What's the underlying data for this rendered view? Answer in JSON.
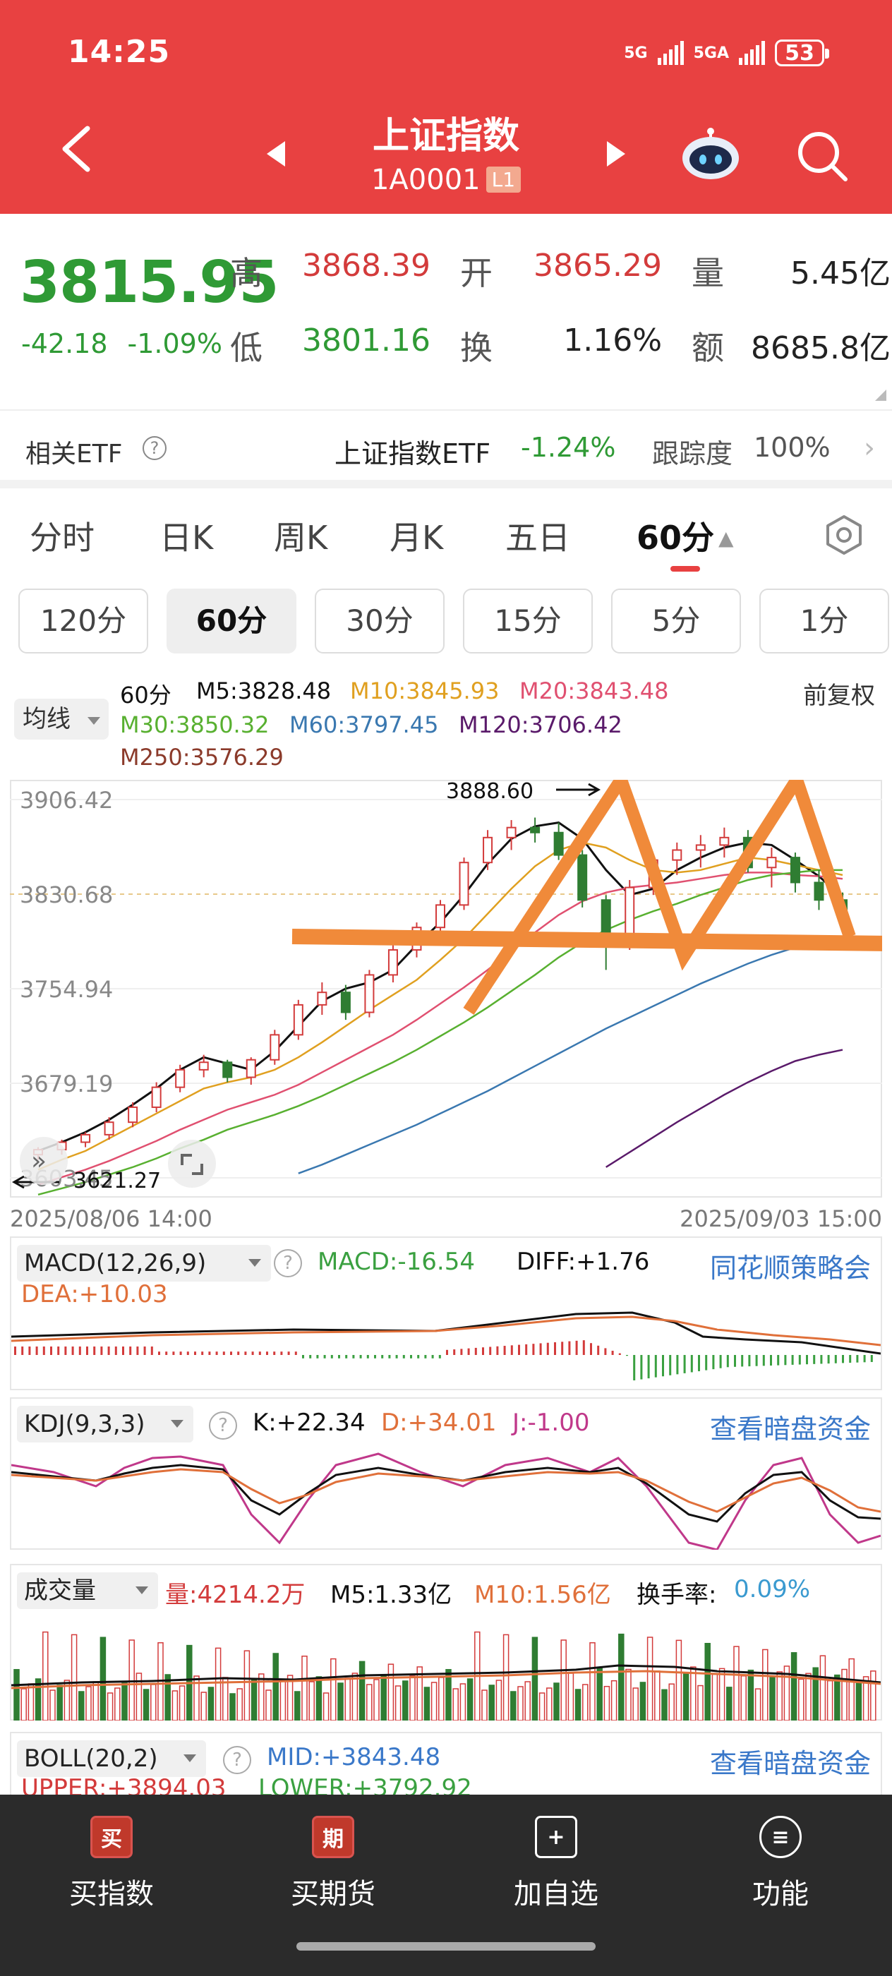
{
  "status_bar": {
    "time": "14:25",
    "signal1": "5G",
    "signal2": "5GA",
    "battery": "53"
  },
  "header": {
    "title": "上证指数",
    "code": "1A0001",
    "badge": "L1"
  },
  "quote": {
    "last": "3815.95",
    "change": "-42.18",
    "change_pct": "-1.09%",
    "high_label": "高",
    "high": "3868.39",
    "open_label": "开",
    "open": "3865.29",
    "volume_label": "量",
    "volume": "5.45亿",
    "low_label": "低",
    "low": "3801.16",
    "turnover_label": "换",
    "turnover": "1.16%",
    "amount_label": "额",
    "amount": "8685.8亿"
  },
  "etf": {
    "label": "相关ETF",
    "help": "?",
    "name": "上证指数ETF",
    "change": "-1.24%",
    "track_label": "跟踪度",
    "track_value": "100%"
  },
  "period_tabs": [
    "分时",
    "日K",
    "周K",
    "月K",
    "五日",
    "60分"
  ],
  "minute_tabs": [
    "120分",
    "60分",
    "30分",
    "15分",
    "5分",
    "1分"
  ],
  "legend": {
    "ma_select": "均线",
    "period": "60分",
    "m5": "M5:3828.48",
    "m10": "M10:3845.93",
    "m20": "M20:3843.48",
    "m30": "M30:3850.32",
    "m60": "M60:3797.45",
    "m120": "M120:3706.42",
    "m250": "M250:3576.29",
    "adjust": "前复权"
  },
  "colors": {
    "up": "#d33b3b",
    "down": "#2f7d32",
    "m5": "#111111",
    "m10": "#e0a020",
    "m20": "#e05070",
    "m30": "#58b030",
    "m60": "#3a78b0",
    "m120": "#5a1a6a",
    "m250": "#8b3a2a",
    "annotation": "#f08a3a"
  },
  "chart_data": {
    "type": "candlestick",
    "title": "上证指数 60分",
    "y_ticks": [
      "3906.42",
      "3830.68",
      "3754.94",
      "3679.19",
      "3603.45"
    ],
    "ylim": [
      3603.45,
      3906.42
    ],
    "annotations": {
      "high_mark": "3888.60",
      "low_mark": "3621.27"
    },
    "x_start": "2025/08/06 14:00",
    "x_end": "2025/09/03 15:00",
    "ohlc_note": "approximate hourly bars",
    "series": [
      {
        "name": "M5",
        "values": [
          3625,
          3632,
          3640,
          3650,
          3662,
          3675,
          3690,
          3700,
          3695,
          3690,
          3705,
          3725,
          3745,
          3755,
          3760,
          3770,
          3790,
          3808,
          3830,
          3855,
          3875,
          3885,
          3888,
          3875,
          3850,
          3830,
          3835,
          3850,
          3860,
          3868,
          3872,
          3870,
          3858,
          3845,
          3828
        ]
      },
      {
        "name": "M10",
        "values": [
          3610,
          3618,
          3625,
          3635,
          3645,
          3655,
          3665,
          3675,
          3680,
          3684,
          3690,
          3700,
          3712,
          3725,
          3738,
          3750,
          3762,
          3778,
          3795,
          3815,
          3835,
          3853,
          3866,
          3872,
          3868,
          3858,
          3850,
          3848,
          3850,
          3855,
          3860,
          3858,
          3854,
          3850,
          3846
        ]
      },
      {
        "name": "M20",
        "values": [
          3598,
          3604,
          3610,
          3617,
          3625,
          3633,
          3642,
          3650,
          3658,
          3664,
          3670,
          3678,
          3688,
          3698,
          3708,
          3718,
          3730,
          3743,
          3756,
          3770,
          3785,
          3800,
          3814,
          3825,
          3832,
          3836,
          3838,
          3840,
          3843,
          3846,
          3848,
          3848,
          3846,
          3845,
          3843
        ]
      },
      {
        "name": "M30",
        "values": [
          3590,
          3595,
          3600,
          3606,
          3612,
          3619,
          3627,
          3634,
          3642,
          3648,
          3654,
          3661,
          3669,
          3678,
          3687,
          3696,
          3706,
          3717,
          3728,
          3740,
          3753,
          3766,
          3780,
          3792,
          3802,
          3810,
          3817,
          3823,
          3830,
          3836,
          3842,
          3846,
          3848,
          3850,
          3850
        ]
      },
      {
        "name": "M60",
        "values": [
          null,
          null,
          null,
          null,
          null,
          null,
          null,
          null,
          null,
          null,
          null,
          3607,
          3614,
          3622,
          3630,
          3638,
          3646,
          3655,
          3664,
          3673,
          3683,
          3693,
          3703,
          3713,
          3723,
          3732,
          3741,
          3750,
          3759,
          3767,
          3775,
          3782,
          3788,
          3793,
          3797
        ]
      },
      {
        "name": "M120",
        "values": [
          null,
          null,
          null,
          null,
          null,
          null,
          null,
          null,
          null,
          null,
          null,
          null,
          null,
          null,
          null,
          null,
          null,
          null,
          null,
          null,
          null,
          null,
          null,
          null,
          3612,
          3624,
          3636,
          3648,
          3659,
          3670,
          3680,
          3689,
          3697,
          3702,
          3706
        ]
      }
    ],
    "candles": [
      [
        3622,
        3628,
        3618,
        3626
      ],
      [
        3626,
        3634,
        3622,
        3632
      ],
      [
        3632,
        3640,
        3628,
        3638
      ],
      [
        3638,
        3652,
        3634,
        3648
      ],
      [
        3648,
        3664,
        3644,
        3660
      ],
      [
        3660,
        3680,
        3656,
        3676
      ],
      [
        3676,
        3694,
        3672,
        3690
      ],
      [
        3690,
        3702,
        3684,
        3696
      ],
      [
        3696,
        3698,
        3680,
        3684
      ],
      [
        3684,
        3700,
        3678,
        3698
      ],
      [
        3698,
        3722,
        3694,
        3718
      ],
      [
        3718,
        3746,
        3714,
        3742
      ],
      [
        3742,
        3760,
        3734,
        3752
      ],
      [
        3752,
        3758,
        3730,
        3736
      ],
      [
        3736,
        3770,
        3732,
        3766
      ],
      [
        3766,
        3790,
        3760,
        3786
      ],
      [
        3786,
        3808,
        3780,
        3804
      ],
      [
        3804,
        3826,
        3798,
        3822
      ],
      [
        3822,
        3860,
        3818,
        3856
      ],
      [
        3856,
        3882,
        3850,
        3876
      ],
      [
        3876,
        3890,
        3866,
        3884
      ],
      [
        3884,
        3892,
        3872,
        3880
      ],
      [
        3880,
        3888,
        3858,
        3862
      ],
      [
        3862,
        3866,
        3820,
        3826
      ],
      [
        3826,
        3830,
        3770,
        3790
      ],
      [
        3790,
        3842,
        3786,
        3836
      ],
      [
        3836,
        3862,
        3830,
        3858
      ],
      [
        3858,
        3872,
        3846,
        3866
      ],
      [
        3866,
        3878,
        3852,
        3870
      ],
      [
        3870,
        3884,
        3860,
        3876
      ],
      [
        3876,
        3882,
        3848,
        3852
      ],
      [
        3852,
        3868,
        3836,
        3860
      ],
      [
        3860,
        3864,
        3832,
        3840
      ],
      [
        3840,
        3850,
        3818,
        3826
      ],
      [
        3826,
        3832,
        3810,
        3816
      ]
    ]
  },
  "macd": {
    "selector": "MACD(12,26,9)",
    "macd": "MACD:-16.54",
    "diff": "DIFF:+1.76",
    "dea": "DEA:+10.03",
    "link": "同花顺策略会"
  },
  "kdj": {
    "selector": "KDJ(9,3,3)",
    "k": "K:+22.34",
    "d": "D:+34.01",
    "j": "J:-1.00",
    "link": "查看暗盘资金"
  },
  "volume": {
    "selector": "成交量",
    "vol": "量:4214.2万",
    "m5": "M5:1.33亿",
    "m10": "M10:1.56亿",
    "turnover_label": "换手率:",
    "turnover": "0.09%"
  },
  "boll": {
    "selector": "BOLL(20,2)",
    "mid": "MID:+3843.48",
    "upper": "UPPER:+3894.03",
    "lower": "LOWER:+3792.92",
    "link": "查看暗盘资金"
  },
  "nav": [
    {
      "label": "买指数",
      "icon": "买",
      "icon_name": "buy-index-icon"
    },
    {
      "label": "买期货",
      "icon": "期",
      "icon_name": "buy-futures-icon"
    },
    {
      "label": "加自选",
      "icon": "+",
      "icon_name": "add-watchlist-icon"
    },
    {
      "label": "功能",
      "icon": "≡",
      "icon_name": "functions-icon"
    }
  ]
}
